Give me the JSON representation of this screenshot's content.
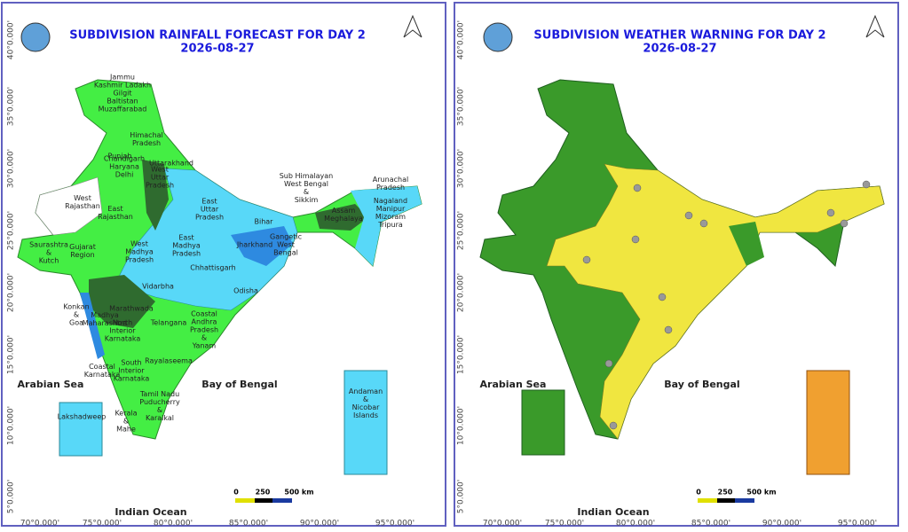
{
  "panels": [
    {
      "title": "SUBDIVISION RAINFALL FORECAST FOR DAY 2",
      "date": "2026-08-27",
      "seas": [
        "Arabian Sea",
        "Bay of Bengal",
        "Indian Ocean"
      ],
      "scale": [
        "0",
        "250",
        "500 km"
      ],
      "lon_labels": [
        "70°0.000'",
        "75°0.000'",
        "80°0.000'",
        "85°0.000'",
        "90°0.000'",
        "95°0.000'"
      ],
      "lat_labels": [
        "40°0.000'",
        "35°0.000'",
        "30°0.000'",
        "25°0.000'",
        "20°0.000'",
        "15°0.000'",
        "10°0.000'",
        "5°0.000'"
      ],
      "regions": [
        [
          "Jammu",
          "Kashmir Ladakh",
          "Gilgit",
          "Baltistan",
          "Muzaffarabad"
        ],
        [
          "Himachal",
          "Pradesh"
        ],
        [
          "Punjab"
        ],
        [
          "Uttarakhand"
        ],
        [
          "Chandigarh",
          "Haryana",
          "Delhi"
        ],
        [
          "West",
          "Uttar",
          "Pradesh"
        ],
        [
          "West",
          "Rajasthan"
        ],
        [
          "East",
          "Rajasthan"
        ],
        [
          "East",
          "Uttar",
          "Pradesh"
        ],
        [
          "Bihar"
        ],
        [
          "Sub Himalayan",
          "West Bengal",
          "&",
          "Sikkim"
        ],
        [
          "Arunachal",
          "Pradesh"
        ],
        [
          "Assam",
          "Meghalaya"
        ],
        [
          "Nagaland",
          "Manipur",
          "Mizoram",
          "Tripura"
        ],
        [
          "Jharkhand"
        ],
        [
          "Gangetic",
          "West",
          "Bengal"
        ],
        [
          "Saurashtra",
          "&",
          "Kutch"
        ],
        [
          "Gujarat",
          "Region"
        ],
        [
          "West",
          "Madhya",
          "Pradesh"
        ],
        [
          "East",
          "Madhya",
          "Pradesh"
        ],
        [
          "Chhattisgarh"
        ],
        [
          "Odisha"
        ],
        [
          "Vidarbha"
        ],
        [
          "Marathwada"
        ],
        [
          "Konkan",
          "&",
          "Goa"
        ],
        [
          "Madhya",
          "Maharashtra"
        ],
        [
          "North",
          "Interior",
          "Karnataka"
        ],
        [
          "Telangana"
        ],
        [
          "Coastal",
          "Andhra",
          "Pradesh",
          "&",
          "Yanam"
        ],
        [
          "Rayalaseema"
        ],
        [
          "Coastal",
          "Karnataka"
        ],
        [
          "South",
          "Interior",
          "Karnataka"
        ],
        [
          "Tamil Nadu",
          "Puducherry",
          "&",
          "Karaikal"
        ],
        [
          "Kerala",
          "&",
          "Mahe"
        ],
        [
          "Lakshadweep"
        ],
        [
          "Andaman",
          "&",
          "Nicobar",
          "Islands"
        ]
      ]
    },
    {
      "title": "SUBDIVISION WEATHER WARNING FOR DAY 2",
      "date": "2026-08-27",
      "seas": [
        "Arabian Sea",
        "Bay of Bengal",
        "Indian Ocean"
      ],
      "scale": [
        "0",
        "250",
        "500 km"
      ],
      "lon_labels": [
        "70°0.000'",
        "75°0.000'",
        "80°0.000'",
        "85°0.000'",
        "90°0.000'",
        "95°0.000'"
      ],
      "lat_labels": [
        "40°0.000'",
        "35°0.000'",
        "30°0.000'",
        "25°0.000'",
        "20°0.000'",
        "15°0.000'",
        "10°0.000'",
        "5°0.000'"
      ],
      "regions": []
    }
  ]
}
